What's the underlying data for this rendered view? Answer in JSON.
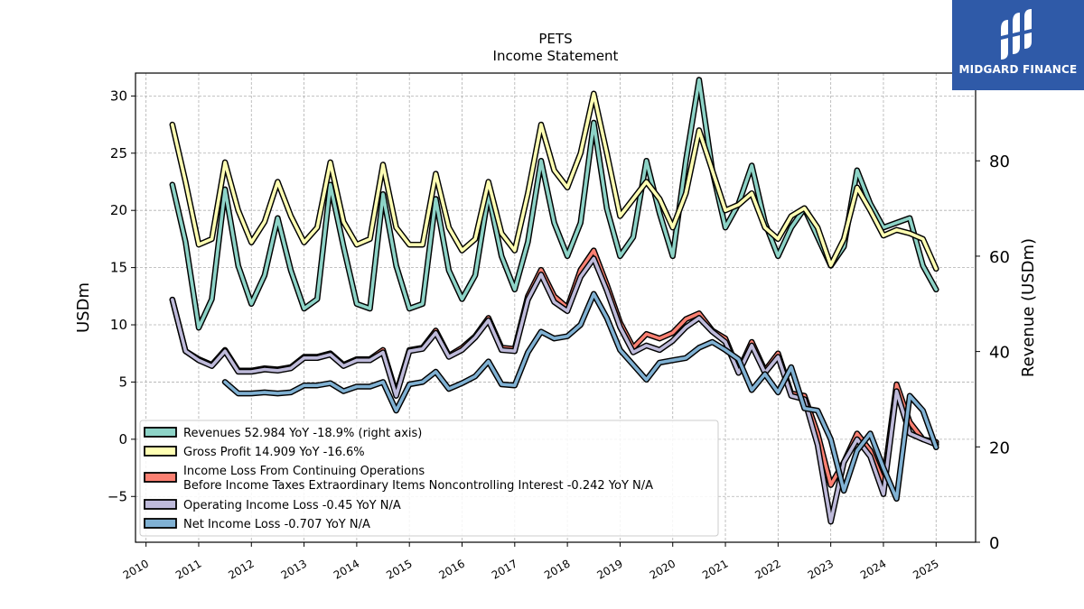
{
  "logo": {
    "brand": "MIDGARD FINANCE",
    "mark": "M-icon"
  },
  "chart_data": {
    "type": "line",
    "title": "PETS",
    "subtitle": "Income Statement",
    "ylabel": "USDm",
    "ylabel_right": "Revenue (USDm)",
    "ylim": [
      -9,
      32
    ],
    "ylim_right": [
      0,
      98.4
    ],
    "xlim": [
      2009.8,
      2025.75
    ],
    "x_ticks": [
      "2010",
      "2011",
      "2012",
      "2013",
      "2014",
      "2015",
      "2016",
      "2017",
      "2018",
      "2019",
      "2020",
      "2021",
      "2022",
      "2023",
      "2024",
      "2025"
    ],
    "y_ticks": [
      -5,
      0,
      5,
      10,
      15,
      20,
      25,
      30
    ],
    "y_ticks_right": [
      0,
      20,
      40,
      60,
      80
    ],
    "grid": true,
    "legend_position": "lower-left",
    "series": [
      {
        "name": "Revenues",
        "legend": "Revenues  52.984 YoY -18.9% (right axis)",
        "color": "#8dd3c7",
        "axis": "right",
        "x": [
          2010.5,
          2010.75,
          2011.0,
          2011.25,
          2011.5,
          2011.75,
          2012.0,
          2012.25,
          2012.5,
          2012.75,
          2013.0,
          2013.25,
          2013.5,
          2013.75,
          2014.0,
          2014.25,
          2014.5,
          2014.75,
          2015.0,
          2015.25,
          2015.5,
          2015.75,
          2016.0,
          2016.25,
          2016.5,
          2016.75,
          2017.0,
          2017.25,
          2017.5,
          2017.75,
          2018.0,
          2018.25,
          2018.5,
          2018.75,
          2019.0,
          2019.25,
          2019.5,
          2019.75,
          2020.0,
          2020.25,
          2020.5,
          2020.75,
          2021.0,
          2021.25,
          2021.5,
          2021.75,
          2022.0,
          2022.25,
          2022.5,
          2022.75,
          2023.0,
          2023.25,
          2023.5,
          2023.75,
          2024.0,
          2024.25,
          2024.5,
          2024.75,
          2025.0
        ],
        "values": [
          75.0,
          63.0,
          45.0,
          51.0,
          74.0,
          58.0,
          50.0,
          56.0,
          68.0,
          57.0,
          49.0,
          51.0,
          75.0,
          62.0,
          50.0,
          49.0,
          73.0,
          58.0,
          49.0,
          50.0,
          72.0,
          57.0,
          51.0,
          56.0,
          73.0,
          60.0,
          53.0,
          63.0,
          80.0,
          67.0,
          60.0,
          67.0,
          88.0,
          70.0,
          60.0,
          64.0,
          80.0,
          69.0,
          60.0,
          80.0,
          97.0,
          78.0,
          66.0,
          71.0,
          79.0,
          67.0,
          60.0,
          66.0,
          70.0,
          64.0,
          58.0,
          62.0,
          78.0,
          71.0,
          66.0,
          67.0,
          68.0,
          58.0,
          53.0
        ]
      },
      {
        "name": "Gross Profit",
        "legend": "Gross Profit  14.909 YoY -16.6%",
        "color": "#ffffb3",
        "axis": "left",
        "x": [
          2010.5,
          2010.75,
          2011.0,
          2011.25,
          2011.5,
          2011.75,
          2012.0,
          2012.25,
          2012.5,
          2012.75,
          2013.0,
          2013.25,
          2013.5,
          2013.75,
          2014.0,
          2014.25,
          2014.5,
          2014.75,
          2015.0,
          2015.25,
          2015.5,
          2015.75,
          2016.0,
          2016.25,
          2016.5,
          2016.75,
          2017.0,
          2017.25,
          2017.5,
          2017.75,
          2018.0,
          2018.25,
          2018.5,
          2018.75,
          2019.0,
          2019.25,
          2019.5,
          2019.75,
          2020.0,
          2020.25,
          2020.5,
          2020.75,
          2021.0,
          2021.25,
          2021.5,
          2021.75,
          2022.0,
          2022.25,
          2022.5,
          2022.75,
          2023.0,
          2023.25,
          2023.5,
          2023.75,
          2024.0,
          2024.25,
          2024.5,
          2024.75,
          2025.0
        ],
        "values": [
          27.5,
          22.5,
          17.0,
          17.5,
          24.2,
          20.0,
          17.2,
          19.0,
          22.5,
          19.5,
          17.2,
          18.5,
          24.2,
          19.0,
          17.0,
          17.5,
          24.0,
          18.5,
          17.0,
          17.0,
          23.2,
          18.5,
          16.5,
          17.5,
          22.5,
          18.0,
          16.5,
          21.5,
          27.5,
          23.5,
          22.0,
          25.0,
          30.2,
          25.0,
          19.5,
          21.0,
          22.5,
          21.0,
          18.5,
          21.5,
          27.0,
          23.5,
          20.0,
          20.5,
          21.5,
          18.5,
          17.5,
          19.5,
          20.2,
          18.5,
          15.2,
          17.5,
          22.0,
          20.0,
          17.8,
          18.3,
          18.0,
          17.5,
          14.9
        ]
      },
      {
        "name": "Income Loss From Continuing Operations Before Income Taxes Extraordinary Items Noncontrolling Interest",
        "legend": [
          "Income Loss From Continuing Operations",
          "Before Income Taxes Extraordinary Items Noncontrolling Interest  -0.242 YoY N/A"
        ],
        "color": "#fb8072",
        "axis": "left",
        "x": [
          2010.5,
          2010.75,
          2011.0,
          2011.25,
          2011.5,
          2011.75,
          2012.0,
          2012.25,
          2012.5,
          2012.75,
          2013.0,
          2013.25,
          2013.5,
          2013.75,
          2014.0,
          2014.25,
          2014.5,
          2014.75,
          2015.0,
          2015.25,
          2015.5,
          2015.75,
          2016.0,
          2016.25,
          2016.5,
          2016.75,
          2017.0,
          2017.25,
          2017.5,
          2017.75,
          2018.0,
          2018.25,
          2018.5,
          2018.75,
          2019.0,
          2019.25,
          2019.5,
          2019.75,
          2020.0,
          2020.25,
          2020.5,
          2020.75,
          2021.0,
          2021.25,
          2021.5,
          2021.75,
          2022.0,
          2022.25,
          2022.5,
          2022.75,
          2023.0,
          2023.25,
          2023.5,
          2023.75,
          2024.0,
          2024.25,
          2024.5,
          2024.75,
          2025.0
        ],
        "values": [
          12.2,
          7.7,
          7.0,
          6.5,
          7.8,
          6.0,
          6.0,
          6.2,
          6.1,
          6.3,
          7.2,
          7.2,
          7.5,
          6.5,
          7.0,
          7.0,
          7.8,
          4.0,
          7.8,
          8.0,
          9.5,
          7.3,
          8.0,
          9.0,
          10.6,
          8.0,
          7.9,
          12.5,
          14.8,
          12.5,
          11.5,
          14.8,
          16.5,
          13.5,
          10.2,
          8.0,
          9.2,
          8.8,
          9.3,
          10.5,
          11.0,
          9.5,
          8.8,
          6.0,
          8.5,
          6.0,
          7.5,
          4.0,
          3.8,
          0.5,
          -4.0,
          -2.0,
          0.5,
          -1.0,
          -3.8,
          4.8,
          1.5,
          0.0,
          -0.242
        ]
      },
      {
        "name": "Operating Income Loss",
        "legend": "Operating Income Loss  -0.45 YoY N/A",
        "color": "#bebada",
        "axis": "left",
        "x": [
          2010.5,
          2010.75,
          2011.0,
          2011.25,
          2011.5,
          2011.75,
          2012.0,
          2012.25,
          2012.5,
          2012.75,
          2013.0,
          2013.25,
          2013.5,
          2013.75,
          2014.0,
          2014.25,
          2014.5,
          2014.75,
          2015.0,
          2015.25,
          2015.5,
          2015.75,
          2016.0,
          2016.25,
          2016.5,
          2016.75,
          2017.0,
          2017.25,
          2017.5,
          2017.75,
          2018.0,
          2018.25,
          2018.5,
          2018.75,
          2019.0,
          2019.25,
          2019.5,
          2019.75,
          2020.0,
          2020.25,
          2020.5,
          2020.75,
          2021.0,
          2021.25,
          2021.5,
          2021.75,
          2022.0,
          2022.25,
          2022.5,
          2022.75,
          2023.0,
          2023.25,
          2023.5,
          2023.75,
          2024.0,
          2024.25,
          2024.5,
          2024.75,
          2025.0
        ],
        "values": [
          12.2,
          7.7,
          6.9,
          6.4,
          7.7,
          5.9,
          5.9,
          6.1,
          6.0,
          6.2,
          7.1,
          7.1,
          7.4,
          6.4,
          6.9,
          6.9,
          7.6,
          3.8,
          7.7,
          7.9,
          9.3,
          7.2,
          7.8,
          8.9,
          10.4,
          7.8,
          7.7,
          12.2,
          14.4,
          12.0,
          11.2,
          14.2,
          15.8,
          13.0,
          9.8,
          7.6,
          8.2,
          7.8,
          8.6,
          9.8,
          10.6,
          9.4,
          8.5,
          5.8,
          8.2,
          5.8,
          7.2,
          3.8,
          3.5,
          -0.5,
          -7.2,
          -2.0,
          0.0,
          -1.5,
          -4.8,
          4.2,
          0.5,
          0.0,
          -0.45
        ]
      },
      {
        "name": "Net Income Loss",
        "legend": "Net Income Loss  -0.707 YoY N/A",
        "color": "#80b1d3",
        "axis": "left",
        "x": [
          2011.5,
          2011.75,
          2012.0,
          2012.25,
          2012.5,
          2012.75,
          2013.0,
          2013.25,
          2013.5,
          2013.75,
          2014.0,
          2014.25,
          2014.5,
          2014.75,
          2015.0,
          2015.25,
          2015.5,
          2015.75,
          2016.0,
          2016.25,
          2016.5,
          2016.75,
          2017.0,
          2017.25,
          2017.5,
          2017.75,
          2018.0,
          2018.25,
          2018.5,
          2018.75,
          2019.0,
          2019.25,
          2019.5,
          2019.75,
          2020.0,
          2020.25,
          2020.5,
          2020.75,
          2021.0,
          2021.25,
          2021.5,
          2021.75,
          2022.0,
          2022.25,
          2022.5,
          2022.75,
          2023.0,
          2023.25,
          2023.5,
          2023.75,
          2024.0,
          2024.25,
          2024.5,
          2024.75,
          2025.0
        ],
        "values": [
          5.0,
          4.0,
          4.0,
          4.1,
          4.0,
          4.1,
          4.7,
          4.7,
          4.9,
          4.2,
          4.6,
          4.6,
          5.0,
          2.5,
          4.8,
          5.0,
          5.9,
          4.4,
          4.9,
          5.5,
          6.8,
          4.8,
          4.7,
          7.6,
          9.4,
          8.8,
          9.0,
          10.0,
          12.7,
          10.6,
          7.8,
          6.5,
          5.2,
          6.7,
          6.9,
          7.1,
          8.0,
          8.5,
          7.8,
          7.0,
          4.3,
          5.7,
          4.1,
          6.3,
          2.7,
          2.5,
          0.0,
          -4.5,
          -1.0,
          0.5,
          -2.5,
          -5.2,
          3.8,
          2.5,
          -0.707
        ]
      }
    ]
  }
}
